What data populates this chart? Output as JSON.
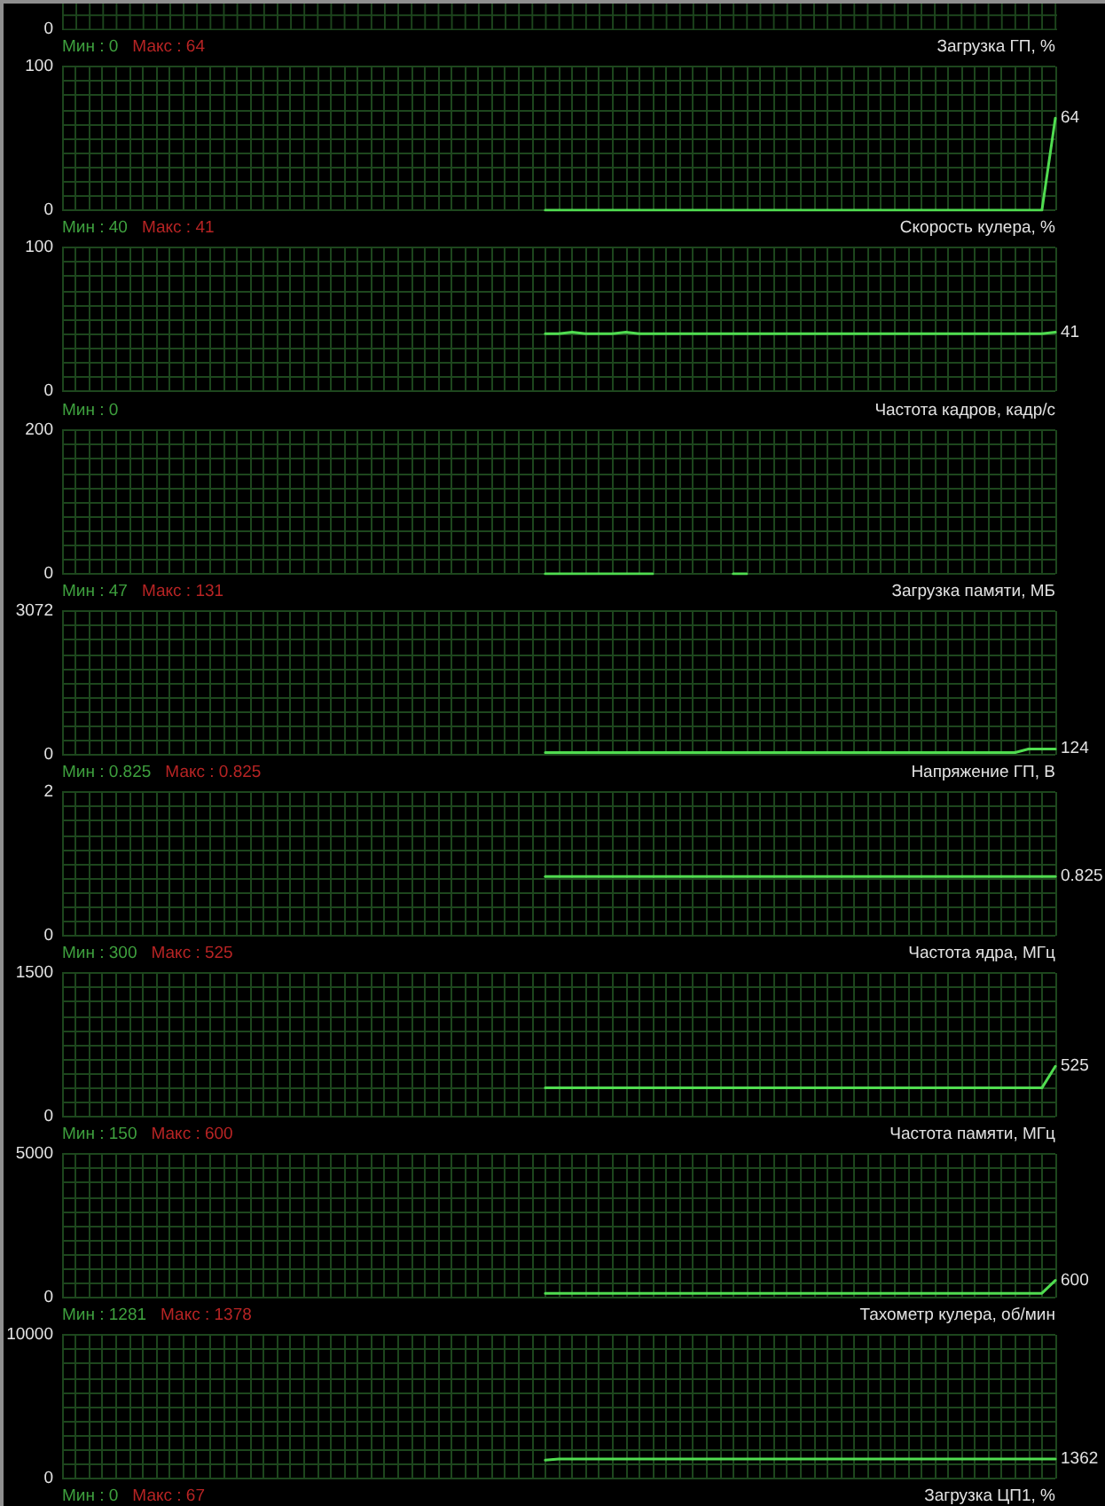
{
  "chart_data": [
    {
      "type": "other",
      "annotations": [
        "0"
      ]
    },
    {
      "type": "line",
      "title": "Загрузка ГП, %",
      "annotations": [
        "Мин : 0",
        "Макс : 64"
      ],
      "categories": [
        null,
        null,
        null,
        null,
        null,
        null,
        null,
        null,
        null,
        null,
        null,
        null,
        null,
        null,
        null,
        null,
        null,
        null,
        null,
        null,
        null,
        null,
        null,
        null,
        null,
        null,
        null,
        null,
        null,
        null,
        null,
        null,
        null,
        null,
        null,
        null,
        null,
        null,
        null,
        null,
        null,
        null,
        null,
        null,
        null,
        null,
        null,
        null,
        null,
        null,
        null,
        null,
        null,
        null,
        null,
        null,
        null,
        null,
        null,
        null,
        null,
        null,
        null,
        null,
        null,
        null,
        null,
        null,
        null,
        null,
        null,
        null,
        null,
        null,
        null
      ],
      "values": [
        null,
        null,
        null,
        null,
        null,
        null,
        null,
        null,
        null,
        null,
        null,
        null,
        null,
        null,
        null,
        null,
        null,
        null,
        null,
        null,
        null,
        null,
        null,
        null,
        null,
        null,
        null,
        null,
        null,
        null,
        null,
        null,
        null,
        null,
        null,
        null,
        0,
        0,
        0,
        0,
        0,
        0,
        0,
        0,
        0,
        0,
        0,
        0,
        0,
        0,
        0,
        0,
        0,
        0,
        0,
        0,
        0,
        0,
        0,
        0,
        0,
        0,
        0,
        0,
        0,
        0,
        0,
        0,
        0,
        0,
        0,
        0,
        0,
        0,
        64
      ],
      "value_labels": [
        null,
        null,
        null,
        null,
        null,
        null,
        null,
        null,
        null,
        null,
        null,
        null,
        null,
        null,
        null,
        null,
        null,
        null,
        null,
        null,
        null,
        null,
        null,
        null,
        null,
        null,
        null,
        null,
        null,
        null,
        null,
        null,
        null,
        null,
        null,
        null,
        null,
        null,
        null,
        null,
        null,
        null,
        null,
        null,
        null,
        null,
        null,
        null,
        null,
        null,
        null,
        null,
        null,
        null,
        null,
        null,
        null,
        null,
        null,
        null,
        null,
        null,
        null,
        null,
        null,
        null,
        null,
        null,
        null,
        null,
        null,
        null,
        null,
        null,
        "64"
      ],
      "color": "#50dc50",
      "ylim": [
        0,
        100
      ],
      "yticks": [
        0,
        {
          "value": 10,
          "label": null
        },
        {
          "value": 20,
          "label": null
        },
        {
          "value": 30,
          "label": null
        },
        {
          "value": 40,
          "label": null
        },
        {
          "value": 50,
          "label": null
        },
        {
          "value": 60,
          "label": null
        },
        {
          "value": 70,
          "label": null
        },
        {
          "value": 80,
          "label": null
        },
        {
          "value": 90,
          "label": null
        },
        100
      ],
      "grid": true,
      "tick_labels": "y",
      "marker": "none",
      "line_style": "solid"
    },
    {
      "type": "line",
      "title": "Скорость кулера, %",
      "annotations": [
        "Мин : 40",
        "Макс : 41"
      ],
      "categories": [
        null,
        null,
        null,
        null,
        null,
        null,
        null,
        null,
        null,
        null,
        null,
        null,
        null,
        null,
        null,
        null,
        null,
        null,
        null,
        null,
        null,
        null,
        null,
        null,
        null,
        null,
        null,
        null,
        null,
        null,
        null,
        null,
        null,
        null,
        null,
        null,
        null,
        null,
        null,
        null,
        null,
        null,
        null,
        null,
        null,
        null,
        null,
        null,
        null,
        null,
        null,
        null,
        null,
        null,
        null,
        null,
        null,
        null,
        null,
        null,
        null,
        null,
        null,
        null,
        null,
        null,
        null,
        null,
        null,
        null,
        null,
        null,
        null,
        null,
        null
      ],
      "values": [
        null,
        null,
        null,
        null,
        null,
        null,
        null,
        null,
        null,
        null,
        null,
        null,
        null,
        null,
        null,
        null,
        null,
        null,
        null,
        null,
        null,
        null,
        null,
        null,
        null,
        null,
        null,
        null,
        null,
        null,
        null,
        null,
        null,
        null,
        null,
        null,
        40,
        40,
        41,
        40,
        40,
        40,
        41,
        40,
        40,
        40,
        40,
        40,
        40,
        40,
        40,
        40,
        40,
        40,
        40,
        40,
        40,
        40,
        40,
        40,
        40,
        40,
        40,
        40,
        40,
        40,
        40,
        40,
        40,
        40,
        40,
        40,
        40,
        40,
        41
      ],
      "value_labels": [
        null,
        null,
        null,
        null,
        null,
        null,
        null,
        null,
        null,
        null,
        null,
        null,
        null,
        null,
        null,
        null,
        null,
        null,
        null,
        null,
        null,
        null,
        null,
        null,
        null,
        null,
        null,
        null,
        null,
        null,
        null,
        null,
        null,
        null,
        null,
        null,
        null,
        null,
        null,
        null,
        null,
        null,
        null,
        null,
        null,
        null,
        null,
        null,
        null,
        null,
        null,
        null,
        null,
        null,
        null,
        null,
        null,
        null,
        null,
        null,
        null,
        null,
        null,
        null,
        null,
        null,
        null,
        null,
        null,
        null,
        null,
        null,
        null,
        null,
        "41"
      ],
      "color": "#50dc50",
      "ylim": [
        0,
        100
      ],
      "yticks": [
        0,
        {
          "value": 10,
          "label": null
        },
        {
          "value": 20,
          "label": null
        },
        {
          "value": 30,
          "label": null
        },
        {
          "value": 40,
          "label": null
        },
        {
          "value": 50,
          "label": null
        },
        {
          "value": 60,
          "label": null
        },
        {
          "value": 70,
          "label": null
        },
        {
          "value": 80,
          "label": null
        },
        {
          "value": 90,
          "label": null
        },
        100
      ],
      "grid": true,
      "tick_labels": "y",
      "marker": "none",
      "line_style": "solid"
    },
    {
      "type": "line",
      "title": "Частота кадров, кадр/с",
      "annotations": [
        "Мин : 0"
      ],
      "categories": [
        null,
        null,
        null,
        null,
        null,
        null,
        null,
        null,
        null,
        null,
        null,
        null,
        null,
        null,
        null,
        null,
        null,
        null,
        null,
        null,
        null,
        null,
        null,
        null,
        null,
        null,
        null,
        null,
        null,
        null,
        null,
        null,
        null,
        null,
        null,
        null,
        null,
        null,
        null,
        null,
        null,
        null,
        null,
        null,
        null,
        null,
        null,
        null,
        null,
        null,
        null,
        null,
        null,
        null,
        null,
        null,
        null,
        null,
        null,
        null,
        null,
        null,
        null,
        null,
        null,
        null,
        null,
        null,
        null,
        null,
        null,
        null,
        null,
        null,
        null
      ],
      "values": [
        null,
        null,
        null,
        null,
        null,
        null,
        null,
        null,
        null,
        null,
        null,
        null,
        null,
        null,
        null,
        null,
        null,
        null,
        null,
        null,
        null,
        null,
        null,
        null,
        null,
        null,
        null,
        null,
        null,
        null,
        null,
        null,
        null,
        null,
        null,
        null,
        0,
        0,
        0,
        0,
        0,
        0,
        0,
        0,
        0,
        null,
        null,
        null,
        null,
        null,
        0,
        0,
        null,
        null,
        null,
        null,
        null,
        null,
        null,
        null,
        null,
        null,
        null,
        null,
        null,
        null,
        null,
        null,
        null,
        null,
        null,
        null,
        null,
        null,
        null
      ],
      "color": "#50dc50",
      "ylim": [
        0,
        200
      ],
      "yticks": [
        0,
        {
          "value": 20,
          "label": null
        },
        {
          "value": 40,
          "label": null
        },
        {
          "value": 60,
          "label": null
        },
        {
          "value": 80,
          "label": null
        },
        {
          "value": 100,
          "label": null
        },
        {
          "value": 120,
          "label": null
        },
        {
          "value": 140,
          "label": null
        },
        {
          "value": 160,
          "label": null
        },
        {
          "value": 180,
          "label": null
        },
        200
      ],
      "grid": true,
      "tick_labels": "y",
      "marker": "none",
      "line_style": "solid"
    },
    {
      "type": "line",
      "title": "Загрузка памяти, МБ",
      "annotations": [
        "Мин : 47",
        "Макс : 131"
      ],
      "categories": [
        null,
        null,
        null,
        null,
        null,
        null,
        null,
        null,
        null,
        null,
        null,
        null,
        null,
        null,
        null,
        null,
        null,
        null,
        null,
        null,
        null,
        null,
        null,
        null,
        null,
        null,
        null,
        null,
        null,
        null,
        null,
        null,
        null,
        null,
        null,
        null,
        null,
        null,
        null,
        null,
        null,
        null,
        null,
        null,
        null,
        null,
        null,
        null,
        null,
        null,
        null,
        null,
        null,
        null,
        null,
        null,
        null,
        null,
        null,
        null,
        null,
        null,
        null,
        null,
        null,
        null,
        null,
        null,
        null,
        null,
        null,
        null,
        null,
        null,
        null
      ],
      "values": [
        null,
        null,
        null,
        null,
        null,
        null,
        null,
        null,
        null,
        null,
        null,
        null,
        null,
        null,
        null,
        null,
        null,
        null,
        null,
        null,
        null,
        null,
        null,
        null,
        null,
        null,
        null,
        null,
        null,
        null,
        null,
        null,
        null,
        null,
        null,
        null,
        47,
        47,
        47,
        47,
        47,
        47,
        47,
        47,
        47,
        47,
        47,
        47,
        47,
        47,
        47,
        47,
        47,
        47,
        47,
        47,
        47,
        47,
        47,
        47,
        47,
        47,
        47,
        47,
        47,
        47,
        47,
        47,
        47,
        47,
        47,
        47,
        124,
        124,
        124
      ],
      "value_labels": [
        null,
        null,
        null,
        null,
        null,
        null,
        null,
        null,
        null,
        null,
        null,
        null,
        null,
        null,
        null,
        null,
        null,
        null,
        null,
        null,
        null,
        null,
        null,
        null,
        null,
        null,
        null,
        null,
        null,
        null,
        null,
        null,
        null,
        null,
        null,
        null,
        null,
        null,
        null,
        null,
        null,
        null,
        null,
        null,
        null,
        null,
        null,
        null,
        null,
        null,
        null,
        null,
        null,
        null,
        null,
        null,
        null,
        null,
        null,
        null,
        null,
        null,
        null,
        null,
        null,
        null,
        null,
        null,
        null,
        null,
        null,
        null,
        null,
        null,
        "124"
      ],
      "color": "#50dc50",
      "ylim": [
        0,
        3072
      ],
      "yticks": [
        0,
        {
          "value": 307.2,
          "label": null
        },
        {
          "value": 614.4,
          "label": null
        },
        {
          "value": 921.6,
          "label": null
        },
        {
          "value": 1228.8,
          "label": null
        },
        {
          "value": 1536,
          "label": null
        },
        {
          "value": 1843.2,
          "label": null
        },
        {
          "value": 2150.4,
          "label": null
        },
        {
          "value": 2457.6,
          "label": null
        },
        {
          "value": 2764.8,
          "label": null
        },
        3072
      ],
      "grid": true,
      "tick_labels": "y",
      "marker": "none",
      "line_style": "solid"
    },
    {
      "type": "line",
      "title": "Напряжение ГП, В",
      "annotations": [
        "Мин : 0.825",
        "Макс : 0.825"
      ],
      "categories": [
        null,
        null,
        null,
        null,
        null,
        null,
        null,
        null,
        null,
        null,
        null,
        null,
        null,
        null,
        null,
        null,
        null,
        null,
        null,
        null,
        null,
        null,
        null,
        null,
        null,
        null,
        null,
        null,
        null,
        null,
        null,
        null,
        null,
        null,
        null,
        null,
        null,
        null,
        null,
        null,
        null,
        null,
        null,
        null,
        null,
        null,
        null,
        null,
        null,
        null,
        null,
        null,
        null,
        null,
        null,
        null,
        null,
        null,
        null,
        null,
        null,
        null,
        null,
        null,
        null,
        null,
        null,
        null,
        null,
        null,
        null,
        null,
        null,
        null,
        null
      ],
      "values": [
        null,
        null,
        null,
        null,
        null,
        null,
        null,
        null,
        null,
        null,
        null,
        null,
        null,
        null,
        null,
        null,
        null,
        null,
        null,
        null,
        null,
        null,
        null,
        null,
        null,
        null,
        null,
        null,
        null,
        null,
        null,
        null,
        null,
        null,
        null,
        null,
        0.825,
        0.825,
        0.825,
        0.825,
        0.825,
        0.825,
        0.825,
        0.825,
        0.825,
        0.825,
        0.825,
        0.825,
        0.825,
        0.825,
        0.825,
        0.825,
        0.825,
        0.825,
        0.825,
        0.825,
        0.825,
        0.825,
        0.825,
        0.825,
        0.825,
        0.825,
        0.825,
        0.825,
        0.825,
        0.825,
        0.825,
        0.825,
        0.825,
        0.825,
        0.825,
        0.825,
        0.825,
        0.825,
        0.825
      ],
      "value_labels": [
        null,
        null,
        null,
        null,
        null,
        null,
        null,
        null,
        null,
        null,
        null,
        null,
        null,
        null,
        null,
        null,
        null,
        null,
        null,
        null,
        null,
        null,
        null,
        null,
        null,
        null,
        null,
        null,
        null,
        null,
        null,
        null,
        null,
        null,
        null,
        null,
        null,
        null,
        null,
        null,
        null,
        null,
        null,
        null,
        null,
        null,
        null,
        null,
        null,
        null,
        null,
        null,
        null,
        null,
        null,
        null,
        null,
        null,
        null,
        null,
        null,
        null,
        null,
        null,
        null,
        null,
        null,
        null,
        null,
        null,
        null,
        null,
        null,
        null,
        "0.825"
      ],
      "color": "#50dc50",
      "ylim": [
        0,
        2
      ],
      "yticks": [
        0,
        {
          "value": 0.2,
          "label": null
        },
        {
          "value": 0.4,
          "label": null
        },
        {
          "value": 0.6,
          "label": null
        },
        {
          "value": 0.8,
          "label": null
        },
        {
          "value": 1,
          "label": null
        },
        {
          "value": 1.2,
          "label": null
        },
        {
          "value": 1.4,
          "label": null
        },
        {
          "value": 1.6,
          "label": null
        },
        {
          "value": 1.8,
          "label": null
        },
        2
      ],
      "grid": true,
      "tick_labels": "y",
      "marker": "none",
      "line_style": "solid"
    },
    {
      "type": "line",
      "title": "Частота ядра, МГц",
      "annotations": [
        "Мин : 300",
        "Макс : 525"
      ],
      "categories": [
        null,
        null,
        null,
        null,
        null,
        null,
        null,
        null,
        null,
        null,
        null,
        null,
        null,
        null,
        null,
        null,
        null,
        null,
        null,
        null,
        null,
        null,
        null,
        null,
        null,
        null,
        null,
        null,
        null,
        null,
        null,
        null,
        null,
        null,
        null,
        null,
        null,
        null,
        null,
        null,
        null,
        null,
        null,
        null,
        null,
        null,
        null,
        null,
        null,
        null,
        null,
        null,
        null,
        null,
        null,
        null,
        null,
        null,
        null,
        null,
        null,
        null,
        null,
        null,
        null,
        null,
        null,
        null,
        null,
        null,
        null,
        null,
        null,
        null,
        null
      ],
      "values": [
        null,
        null,
        null,
        null,
        null,
        null,
        null,
        null,
        null,
        null,
        null,
        null,
        null,
        null,
        null,
        null,
        null,
        null,
        null,
        null,
        null,
        null,
        null,
        null,
        null,
        null,
        null,
        null,
        null,
        null,
        null,
        null,
        null,
        null,
        null,
        null,
        300,
        300,
        300,
        300,
        300,
        300,
        300,
        300,
        300,
        300,
        300,
        300,
        300,
        300,
        300,
        300,
        300,
        300,
        300,
        300,
        300,
        300,
        300,
        300,
        300,
        300,
        300,
        300,
        300,
        300,
        300,
        300,
        300,
        300,
        300,
        300,
        300,
        300,
        525
      ],
      "value_labels": [
        null,
        null,
        null,
        null,
        null,
        null,
        null,
        null,
        null,
        null,
        null,
        null,
        null,
        null,
        null,
        null,
        null,
        null,
        null,
        null,
        null,
        null,
        null,
        null,
        null,
        null,
        null,
        null,
        null,
        null,
        null,
        null,
        null,
        null,
        null,
        null,
        null,
        null,
        null,
        null,
        null,
        null,
        null,
        null,
        null,
        null,
        null,
        null,
        null,
        null,
        null,
        null,
        null,
        null,
        null,
        null,
        null,
        null,
        null,
        null,
        null,
        null,
        null,
        null,
        null,
        null,
        null,
        null,
        null,
        null,
        null,
        null,
        null,
        null,
        "525"
      ],
      "color": "#50dc50",
      "ylim": [
        0,
        1500
      ],
      "yticks": [
        0,
        {
          "value": 150,
          "label": null
        },
        {
          "value": 300,
          "label": null
        },
        {
          "value": 450,
          "label": null
        },
        {
          "value": 600,
          "label": null
        },
        {
          "value": 750,
          "label": null
        },
        {
          "value": 900,
          "label": null
        },
        {
          "value": 1050,
          "label": null
        },
        {
          "value": 1200,
          "label": null
        },
        {
          "value": 1350,
          "label": null
        },
        1500
      ],
      "grid": true,
      "tick_labels": "y",
      "marker": "none",
      "line_style": "solid"
    },
    {
      "type": "line",
      "title": "Частота памяти, МГц",
      "annotations": [
        "Мин : 150",
        "Макс : 600"
      ],
      "categories": [
        null,
        null,
        null,
        null,
        null,
        null,
        null,
        null,
        null,
        null,
        null,
        null,
        null,
        null,
        null,
        null,
        null,
        null,
        null,
        null,
        null,
        null,
        null,
        null,
        null,
        null,
        null,
        null,
        null,
        null,
        null,
        null,
        null,
        null,
        null,
        null,
        null,
        null,
        null,
        null,
        null,
        null,
        null,
        null,
        null,
        null,
        null,
        null,
        null,
        null,
        null,
        null,
        null,
        null,
        null,
        null,
        null,
        null,
        null,
        null,
        null,
        null,
        null,
        null,
        null,
        null,
        null,
        null,
        null,
        null,
        null,
        null,
        null,
        null,
        null
      ],
      "values": [
        null,
        null,
        null,
        null,
        null,
        null,
        null,
        null,
        null,
        null,
        null,
        null,
        null,
        null,
        null,
        null,
        null,
        null,
        null,
        null,
        null,
        null,
        null,
        null,
        null,
        null,
        null,
        null,
        null,
        null,
        null,
        null,
        null,
        null,
        null,
        null,
        150,
        150,
        150,
        150,
        150,
        150,
        150,
        150,
        150,
        150,
        150,
        150,
        150,
        150,
        150,
        150,
        150,
        150,
        150,
        150,
        150,
        150,
        150,
        150,
        150,
        150,
        150,
        150,
        150,
        150,
        150,
        150,
        150,
        150,
        150,
        150,
        150,
        150,
        600
      ],
      "value_labels": [
        null,
        null,
        null,
        null,
        null,
        null,
        null,
        null,
        null,
        null,
        null,
        null,
        null,
        null,
        null,
        null,
        null,
        null,
        null,
        null,
        null,
        null,
        null,
        null,
        null,
        null,
        null,
        null,
        null,
        null,
        null,
        null,
        null,
        null,
        null,
        null,
        null,
        null,
        null,
        null,
        null,
        null,
        null,
        null,
        null,
        null,
        null,
        null,
        null,
        null,
        null,
        null,
        null,
        null,
        null,
        null,
        null,
        null,
        null,
        null,
        null,
        null,
        null,
        null,
        null,
        null,
        null,
        null,
        null,
        null,
        null,
        null,
        null,
        null,
        "600"
      ],
      "color": "#50dc50",
      "ylim": [
        0,
        5000
      ],
      "yticks": [
        0,
        {
          "value": 500,
          "label": null
        },
        {
          "value": 1000,
          "label": null
        },
        {
          "value": 1500,
          "label": null
        },
        {
          "value": 2000,
          "label": null
        },
        {
          "value": 2500,
          "label": null
        },
        {
          "value": 3000,
          "label": null
        },
        {
          "value": 3500,
          "label": null
        },
        {
          "value": 4000,
          "label": null
        },
        {
          "value": 4500,
          "label": null
        },
        5000
      ],
      "grid": true,
      "tick_labels": "y",
      "marker": "none",
      "line_style": "solid"
    },
    {
      "type": "line",
      "title": "Тахометр кулера, об/мин",
      "annotations": [
        "Мин : 1281",
        "Макс : 1378"
      ],
      "categories": [
        null,
        null,
        null,
        null,
        null,
        null,
        null,
        null,
        null,
        null,
        null,
        null,
        null,
        null,
        null,
        null,
        null,
        null,
        null,
        null,
        null,
        null,
        null,
        null,
        null,
        null,
        null,
        null,
        null,
        null,
        null,
        null,
        null,
        null,
        null,
        null,
        null,
        null,
        null,
        null,
        null,
        null,
        null,
        null,
        null,
        null,
        null,
        null,
        null,
        null,
        null,
        null,
        null,
        null,
        null,
        null,
        null,
        null,
        null,
        null,
        null,
        null,
        null,
        null,
        null,
        null,
        null,
        null,
        null,
        null,
        null,
        null,
        null,
        null,
        null
      ],
      "values": [
        null,
        null,
        null,
        null,
        null,
        null,
        null,
        null,
        null,
        null,
        null,
        null,
        null,
        null,
        null,
        null,
        null,
        null,
        null,
        null,
        null,
        null,
        null,
        null,
        null,
        null,
        null,
        null,
        null,
        null,
        null,
        null,
        null,
        null,
        null,
        null,
        1281,
        1362,
        1362,
        1362,
        1362,
        1362,
        1362,
        1362,
        1362,
        1362,
        1362,
        1362,
        1362,
        1362,
        1362,
        1362,
        1362,
        1362,
        1362,
        1362,
        1362,
        1362,
        1362,
        1362,
        1362,
        1362,
        1362,
        1362,
        1362,
        1362,
        1362,
        1362,
        1362,
        1362,
        1362,
        1362,
        1362,
        1362,
        1362
      ],
      "value_labels": [
        null,
        null,
        null,
        null,
        null,
        null,
        null,
        null,
        null,
        null,
        null,
        null,
        null,
        null,
        null,
        null,
        null,
        null,
        null,
        null,
        null,
        null,
        null,
        null,
        null,
        null,
        null,
        null,
        null,
        null,
        null,
        null,
        null,
        null,
        null,
        null,
        null,
        null,
        null,
        null,
        null,
        null,
        null,
        null,
        null,
        null,
        null,
        null,
        null,
        null,
        null,
        null,
        null,
        null,
        null,
        null,
        null,
        null,
        null,
        null,
        null,
        null,
        null,
        null,
        null,
        null,
        null,
        null,
        null,
        null,
        null,
        null,
        null,
        null,
        "1362"
      ],
      "color": "#50dc50",
      "ylim": [
        0,
        10000
      ],
      "yticks": [
        0,
        {
          "value": 1000,
          "label": null
        },
        {
          "value": 2000,
          "label": null
        },
        {
          "value": 3000,
          "label": null
        },
        {
          "value": 4000,
          "label": null
        },
        {
          "value": 5000,
          "label": null
        },
        {
          "value": 6000,
          "label": null
        },
        {
          "value": 7000,
          "label": null
        },
        {
          "value": 8000,
          "label": null
        },
        {
          "value": 9000,
          "label": null
        },
        10000
      ],
      "grid": true,
      "tick_labels": "y",
      "marker": "none",
      "line_style": "solid"
    },
    {
      "type": "other",
      "title": "Загрузка ЦП1, %",
      "annotations": [
        "Мин : 0",
        "Макс : 67"
      ]
    }
  ]
}
